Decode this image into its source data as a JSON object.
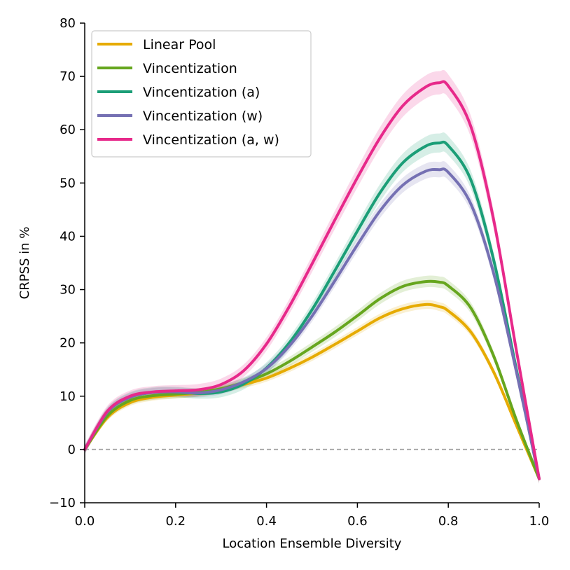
{
  "chart_data": {
    "type": "line",
    "title": "",
    "xlabel": "Location Ensemble Diversity",
    "ylabel": "CRPSS in %",
    "xlim": [
      0.0,
      1.0
    ],
    "ylim": [
      -10,
      80
    ],
    "x_ticks": [
      0.0,
      0.2,
      0.4,
      0.6,
      0.8,
      1.0
    ],
    "x_tick_labels": [
      "0.0",
      "0.2",
      "0.4",
      "0.6",
      "0.8",
      "1.0"
    ],
    "y_ticks": [
      -10,
      0,
      10,
      20,
      30,
      40,
      50,
      60,
      70,
      80
    ],
    "y_tick_labels": [
      "−10",
      "0",
      "10",
      "20",
      "30",
      "40",
      "50",
      "60",
      "70",
      "80"
    ],
    "grid": false,
    "legend_position": "top-left",
    "reference_line": {
      "y": 0,
      "style": "dashed",
      "color": "#aaaaaa"
    },
    "x": [
      0.0,
      0.05,
      0.1,
      0.15,
      0.2,
      0.25,
      0.3,
      0.35,
      0.4,
      0.45,
      0.5,
      0.55,
      0.6,
      0.65,
      0.7,
      0.75,
      0.78,
      0.8,
      0.85,
      0.9,
      0.95,
      1.0
    ],
    "series": [
      {
        "name": "Linear Pool",
        "color": "#E6AB02",
        "values": [
          0.0,
          6.0,
          8.8,
          9.8,
          10.2,
          10.6,
          11.3,
          12.2,
          13.4,
          15.2,
          17.3,
          19.7,
          22.2,
          24.7,
          26.4,
          27.2,
          26.8,
          26.0,
          22.0,
          14.5,
          4.5,
          -5.5
        ],
        "band": 1.3
      },
      {
        "name": "Vincentization",
        "color": "#66A61E",
        "values": [
          0.0,
          6.3,
          9.2,
          10.1,
          10.4,
          10.7,
          11.4,
          12.6,
          14.2,
          16.5,
          19.2,
          22.0,
          25.1,
          28.3,
          30.6,
          31.5,
          31.4,
          30.7,
          26.5,
          17.5,
          5.5,
          -5.5
        ],
        "band": 1.6
      },
      {
        "name": "Vincentization (a)",
        "color": "#1B9E77",
        "values": [
          0.0,
          7.0,
          9.8,
          10.7,
          10.8,
          10.5,
          10.8,
          12.3,
          15.3,
          20.0,
          26.2,
          33.5,
          41.0,
          48.2,
          53.8,
          56.9,
          57.5,
          57.0,
          50.5,
          35.5,
          15.0,
          -5.5
        ],
        "band": 2.0
      },
      {
        "name": "Vincentization (w)",
        "color": "#7570B3",
        "values": [
          0.0,
          7.0,
          9.8,
          10.7,
          10.8,
          10.6,
          11.2,
          12.7,
          15.2,
          19.4,
          25.0,
          31.6,
          38.4,
          44.8,
          49.6,
          52.2,
          52.5,
          52.0,
          46.0,
          33.0,
          14.5,
          -5.5
        ],
        "band": 1.7
      },
      {
        "name": "Vincentization (a, w)",
        "color": "#E7298A",
        "values": [
          0.0,
          7.2,
          10.0,
          10.8,
          11.0,
          11.2,
          12.2,
          14.8,
          19.8,
          26.8,
          34.8,
          43.0,
          51.0,
          58.5,
          64.5,
          68.0,
          68.8,
          68.2,
          60.5,
          43.0,
          18.5,
          -5.5
        ],
        "band": 2.2
      }
    ]
  }
}
